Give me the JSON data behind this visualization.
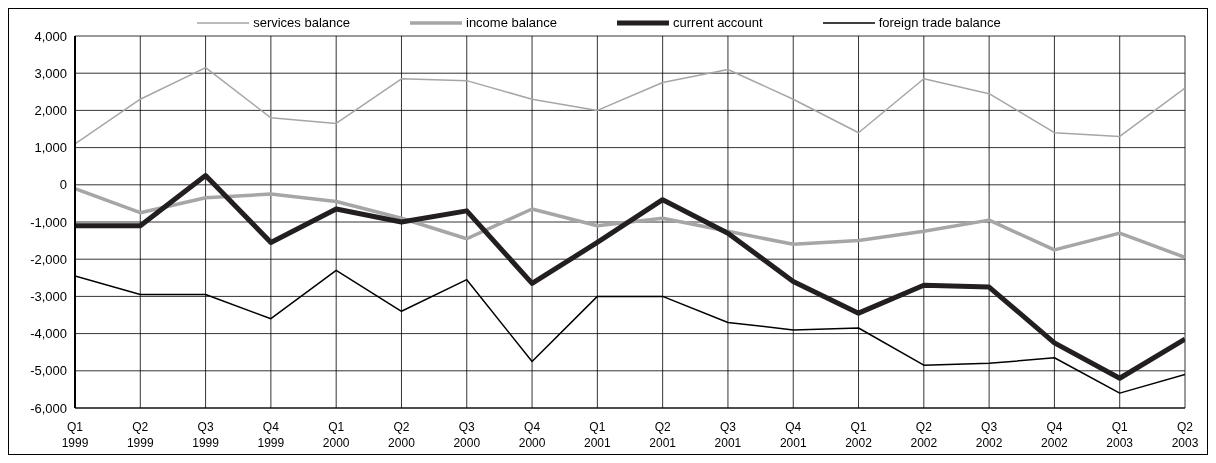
{
  "chart_data": {
    "type": "line",
    "categories": [
      "Q1\n1999",
      "Q2\n1999",
      "Q3\n1999",
      "Q4\n1999",
      "Q1\n2000",
      "Q2\n2000",
      "Q3\n2000",
      "Q4\n2000",
      "Q1\n2001",
      "Q2\n2001",
      "Q3\n2001",
      "Q4\n2001",
      "Q1\n2002",
      "Q2\n2002",
      "Q3\n2002",
      "Q4\n2002",
      "Q1\n2003",
      "Q2\n2003"
    ],
    "series": [
      {
        "name": "services balance",
        "color": "#a6a6a6",
        "values": [
          1100,
          2300,
          3150,
          1800,
          1650,
          2850,
          2800,
          2300,
          2000,
          2750,
          3100,
          2300,
          1400,
          2850,
          2450,
          1400,
          1300,
          2600
        ]
      },
      {
        "name": "income balance",
        "color": "#a6a6a6",
        "values": [
          -100,
          -750,
          -350,
          -250,
          -450,
          -900,
          -1450,
          -650,
          -1100,
          -900,
          -1250,
          -1600,
          -1500,
          -1250,
          -950,
          -1750,
          -1300,
          -1950
        ]
      },
      {
        "name": "current account",
        "color": "#231f20",
        "values": [
          -1100,
          -1100,
          250,
          -1550,
          -650,
          -1000,
          -700,
          -2650,
          -1550,
          -400,
          -1300,
          -2600,
          -3450,
          -2700,
          -2750,
          -4250,
          -5200,
          -4150
        ]
      },
      {
        "name": "foreign trade balance",
        "color": "#000000",
        "values": [
          -2450,
          -2950,
          -2950,
          -3600,
          -2300,
          -3400,
          -2550,
          -4750,
          -3000,
          -3000,
          -3700,
          -3900,
          -3850,
          -4850,
          -4800,
          -4650,
          -5600,
          -5100
        ]
      }
    ],
    "ylim": [
      -6000,
      4000
    ],
    "yticks": [
      {
        "value": -6000,
        "label": "-6,000"
      },
      {
        "value": -5000,
        "label": "-5,000"
      },
      {
        "value": -4000,
        "label": "-4,000"
      },
      {
        "value": -3000,
        "label": "-3,000"
      },
      {
        "value": -2000,
        "label": "-2,000"
      },
      {
        "value": -1000,
        "label": "-1,000"
      },
      0,
      {
        "value": 1000,
        "label": "1,000"
      },
      {
        "value": 2000,
        "label": "2,000"
      },
      {
        "value": 3000,
        "label": "3,000"
      },
      {
        "value": 4000,
        "label": "4,000"
      }
    ],
    "grid": true,
    "legend": "top",
    "marker": "none",
    "line_style": "solid"
  }
}
